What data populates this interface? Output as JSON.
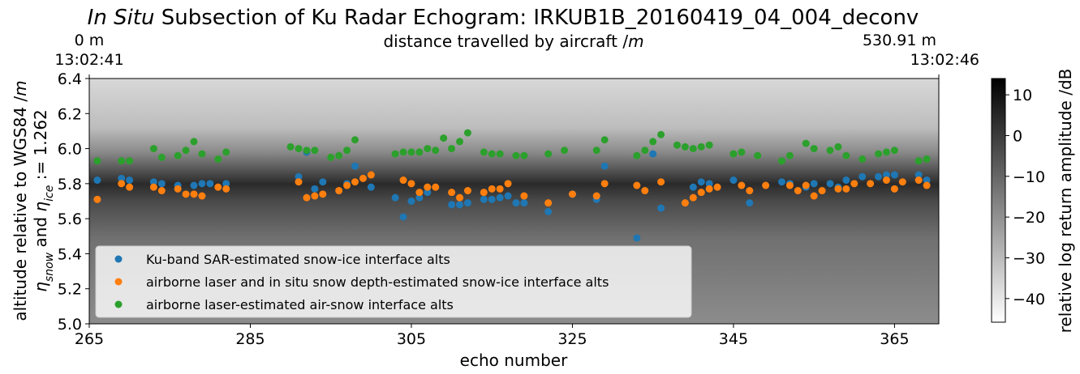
{
  "chart_data": {
    "type": "scatter",
    "title_italic": "In Situ",
    "title_rest": "Subsection of Ku Radar Echogram: IRKUB1B_20160419_04_004_deconv",
    "xlabel": "echo number",
    "top_xlabel_text": "distance travelled by aircraft /",
    "top_xlabel_unit": "m",
    "ylabel_text": "altitude relative to WGS84 /",
    "ylabel_unit": "m",
    "ylabel2_parts": [
      "η",
      "snow",
      " and ",
      "η",
      "ice",
      " := 1.262"
    ],
    "xlim": [
      265,
      370.5
    ],
    "ylim": [
      5.0,
      6.4
    ],
    "xticks": [
      265,
      285,
      305,
      325,
      345,
      365
    ],
    "yticks": [
      {
        "value": 5.0,
        "label": "5.0"
      },
      5.2,
      5.4,
      5.6,
      5.8,
      {
        "value": 6.0,
        "label": "6.0"
      },
      6.2,
      6.4
    ],
    "top_ticks": [
      {
        "value": 265,
        "label": "0 m"
      },
      {
        "value": 370.5,
        "label": "530.91 m"
      }
    ],
    "top_time_labels": [
      "13:02:41",
      "13:02:46"
    ],
    "legend": "lower left",
    "colorbar": {
      "label": "relative log return amplitude /dB",
      "clim": [
        -45.8,
        14
      ],
      "ticks": [
        {
          "value": -40,
          "label": "−40"
        },
        {
          "value": -30,
          "label": "−30"
        },
        {
          "value": -20,
          "label": "−20"
        },
        {
          "value": -10,
          "label": "−10"
        },
        0,
        10
      ]
    },
    "series": [
      {
        "name": "Ku-band SAR-estimated snow-ice interface alts",
        "color": "#1f77b4",
        "x": [
          266,
          269,
          270,
          273,
          274,
          276,
          278,
          279,
          280,
          282,
          291,
          292,
          293,
          294,
          297,
          298,
          300,
          303,
          304,
          305,
          306,
          307,
          310,
          311,
          312,
          314,
          315,
          316,
          317,
          318,
          319,
          322,
          325,
          328,
          329,
          333,
          335,
          336,
          340,
          341,
          342,
          345,
          347,
          351,
          352,
          354,
          355,
          357,
          358,
          359,
          361,
          363,
          364,
          365,
          368,
          369
        ],
        "values": [
          5.82,
          5.83,
          5.82,
          5.81,
          5.8,
          5.79,
          5.79,
          5.8,
          5.8,
          5.8,
          5.84,
          5.98,
          5.77,
          5.81,
          5.8,
          5.9,
          5.78,
          5.72,
          5.61,
          5.7,
          5.72,
          5.75,
          5.68,
          5.68,
          5.69,
          5.71,
          5.71,
          5.72,
          5.73,
          5.69,
          5.69,
          5.64,
          5.74,
          5.71,
          5.9,
          5.49,
          5.97,
          5.66,
          5.78,
          5.81,
          5.8,
          5.82,
          5.69,
          5.81,
          5.8,
          5.78,
          5.8,
          5.8,
          5.78,
          5.82,
          5.84,
          5.84,
          5.85,
          5.85,
          5.85,
          5.82
        ]
      },
      {
        "name": "airborne laser and in situ snow depth-estimated snow-ice interface alts",
        "color": "#ff7f0e",
        "x": [
          266,
          269,
          270,
          273,
          274,
          276,
          277,
          278,
          279,
          281,
          282,
          291,
          292,
          293,
          294,
          296,
          297,
          298,
          299,
          300,
          304,
          305,
          306,
          307,
          308,
          310,
          311,
          312,
          314,
          315,
          316,
          317,
          319,
          322,
          325,
          328,
          329,
          333,
          334,
          336,
          339,
          340,
          341,
          342,
          343,
          346,
          347,
          349,
          352,
          353,
          354,
          355,
          356,
          358,
          359,
          360,
          362,
          364,
          365,
          366,
          368,
          369
        ],
        "values": [
          5.71,
          5.8,
          5.78,
          5.78,
          5.76,
          5.77,
          5.74,
          5.74,
          5.73,
          5.78,
          5.77,
          5.81,
          5.72,
          5.73,
          5.74,
          5.76,
          5.79,
          5.81,
          5.83,
          5.85,
          5.82,
          5.8,
          5.75,
          5.78,
          5.78,
          5.75,
          5.72,
          5.76,
          5.75,
          5.77,
          5.77,
          5.8,
          5.73,
          5.69,
          5.74,
          5.73,
          5.8,
          5.79,
          5.76,
          5.81,
          5.69,
          5.72,
          5.75,
          5.77,
          5.78,
          5.79,
          5.76,
          5.79,
          5.79,
          5.76,
          5.79,
          5.73,
          5.76,
          5.77,
          5.77,
          5.8,
          5.8,
          5.82,
          5.77,
          5.81,
          5.82,
          5.79
        ]
      },
      {
        "name": "airborne laser-estimated air-snow interface alts",
        "color": "#2ca02c",
        "x": [
          266,
          269,
          270,
          273,
          274,
          276,
          277,
          278,
          279,
          281,
          282,
          290,
          291,
          292,
          293,
          295,
          296,
          297,
          298,
          303,
          304,
          305,
          306,
          307,
          308,
          309,
          310,
          311,
          312,
          314,
          315,
          316,
          318,
          319,
          322,
          324,
          328,
          329,
          333,
          334,
          335,
          336,
          338,
          339,
          340,
          341,
          342,
          345,
          346,
          348,
          351,
          352,
          354,
          355,
          357,
          358,
          359,
          361,
          363,
          364,
          365,
          368,
          369
        ],
        "values": [
          5.93,
          5.93,
          5.93,
          6.0,
          5.95,
          5.96,
          5.99,
          6.04,
          5.97,
          5.94,
          5.98,
          6.01,
          6.0,
          5.99,
          5.99,
          5.95,
          5.96,
          5.99,
          6.05,
          5.97,
          5.98,
          5.98,
          5.98,
          6.0,
          5.99,
          6.06,
          6.0,
          6.04,
          6.09,
          5.98,
          5.97,
          5.97,
          5.96,
          5.96,
          5.97,
          5.99,
          5.99,
          6.05,
          5.96,
          5.99,
          6.04,
          6.08,
          6.02,
          6.01,
          6.0,
          6.01,
          6.02,
          5.97,
          5.98,
          5.96,
          5.93,
          5.96,
          6.03,
          6.0,
          5.99,
          6.01,
          5.96,
          5.94,
          5.97,
          5.98,
          5.99,
          5.93,
          5.94
        ]
      }
    ]
  }
}
